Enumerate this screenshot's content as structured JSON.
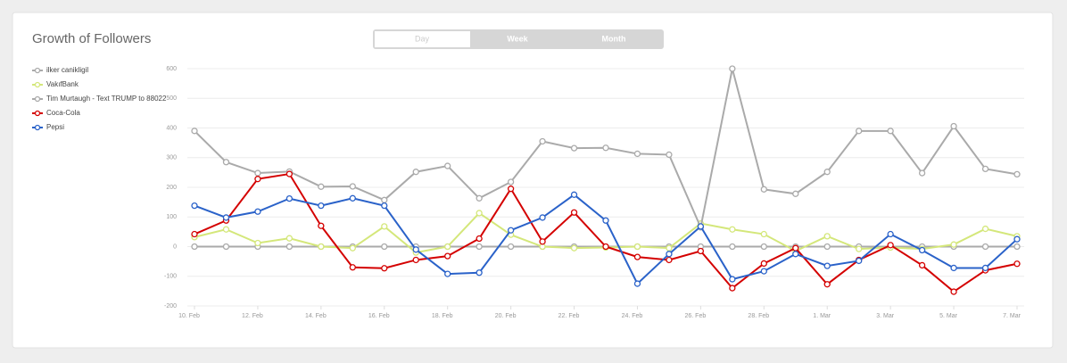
{
  "tabs": [
    "Day",
    "Week",
    "Month"
  ],
  "chart_data": {
    "type": "line",
    "title": "Growth of Followers",
    "categories": [
      "10. Feb",
      null,
      "12. Feb",
      null,
      "14. Feb",
      null,
      "16. Feb",
      null,
      "18. Feb",
      null,
      "20. Feb",
      null,
      "22. Feb",
      null,
      "24. Feb",
      null,
      "26. Feb",
      null,
      "28. Feb",
      null,
      "1. Mar",
      null,
      "3. Mar",
      null,
      "5. Mar",
      null,
      "7. Mar"
    ],
    "ylim": [
      -200,
      600
    ],
    "yticks": [
      -200,
      -100,
      0,
      100,
      200,
      300,
      400,
      500,
      600
    ],
    "grid": true,
    "series": [
      {
        "name": "ilker canikligil",
        "color": "#aaaaaa",
        "values": [
          0,
          0,
          0,
          0,
          0,
          0,
          0,
          0,
          0,
          0,
          0,
          0,
          0,
          0,
          0,
          0,
          0,
          0,
          0,
          0,
          0,
          0,
          0,
          0,
          0,
          0,
          0
        ]
      },
      {
        "name": "VakıfBank",
        "color": "#d4e77a",
        "values": [
          32,
          58,
          12,
          28,
          0,
          -5,
          68,
          -20,
          0,
          113,
          40,
          0,
          -5,
          -3,
          0,
          -5,
          78,
          58,
          42,
          -15,
          35,
          -8,
          -3,
          -8,
          7,
          60,
          35
        ]
      },
      {
        "name": "Tim Murtaugh - Text TRUMP to 88022",
        "color": "#aaaaaa",
        "values": [
          390,
          285,
          248,
          253,
          202,
          203,
          157,
          252,
          272,
          163,
          218,
          355,
          332,
          333,
          313,
          310,
          65,
          600,
          193,
          178,
          252,
          390,
          390,
          248,
          406,
          262,
          244
        ]
      },
      {
        "name": "Coca-Cola",
        "color": "#d40000",
        "values": [
          42,
          88,
          228,
          245,
          70,
          -70,
          -73,
          -45,
          -32,
          27,
          195,
          17,
          115,
          0,
          -35,
          -45,
          -15,
          -140,
          -57,
          -5,
          -127,
          -45,
          5,
          -63,
          -152,
          -80,
          -58
        ]
      },
      {
        "name": "Pepsi",
        "color": "#2a62c9",
        "values": [
          138,
          98,
          118,
          162,
          138,
          163,
          138,
          -10,
          -92,
          -88,
          55,
          98,
          175,
          88,
          -125,
          -25,
          68,
          -110,
          -83,
          -25,
          -65,
          -48,
          42,
          -12,
          -72,
          -72,
          25
        ]
      }
    ]
  }
}
